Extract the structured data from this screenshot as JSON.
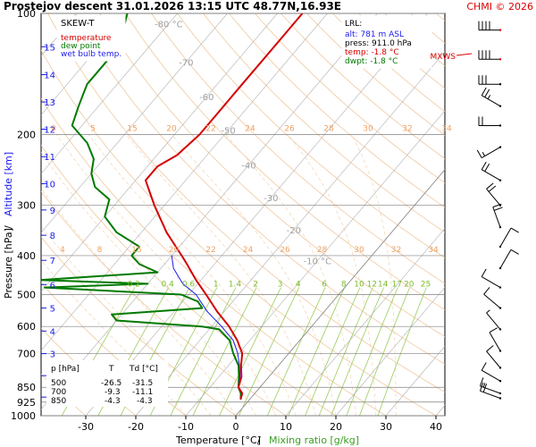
{
  "header": {
    "title": "Prostejov   descent   31.01.2026 13:15 UTC   48.77N,16.93E",
    "credit": "CHMI © 2026"
  },
  "colors": {
    "temperature": "#d40000",
    "dewpoint": "#007a00",
    "wetbulb": "#1a1aee",
    "isotherm": "#b0b0b0",
    "dry_adiabat": "#f0c8a0",
    "moist_adiabat": "#f3d4b4",
    "mixing_ratio": "#9ccc5a",
    "credit": "#dd0000"
  },
  "chart_data": {
    "type": "line",
    "diagram": "SKEW-T",
    "legend": [
      {
        "label": "temperature",
        "color": "#d40000"
      },
      {
        "label": "dew point",
        "color": "#007a00"
      },
      {
        "label": "wet bulb temp.",
        "color": "#1a1aee"
      }
    ],
    "xlabel": "Temperature [°C]",
    "xlabel_sep": "/",
    "xlabel2": "Mixing ratio [g/kg]",
    "ylabel": "Pressure [hPa]",
    "ylabel_sep": "/",
    "ylabel2": "Altitude [km]",
    "x_ticks": [
      -30,
      -20,
      -10,
      0,
      10,
      20,
      30,
      40
    ],
    "p_ticks": [
      100,
      200,
      300,
      400,
      500,
      600,
      700,
      850,
      925,
      1000
    ],
    "altitude_ticks": [
      {
        "km": 1,
        "p": 899
      },
      {
        "km": 2,
        "p": 795
      },
      {
        "km": 3,
        "p": 701
      },
      {
        "km": 4,
        "p": 616
      },
      {
        "km": 5,
        "p": 540
      },
      {
        "km": 6,
        "p": 472
      },
      {
        "km": 7,
        "p": 411
      },
      {
        "km": 8,
        "p": 356
      },
      {
        "km": 9,
        "p": 308
      },
      {
        "km": 10,
        "p": 265
      },
      {
        "km": 11,
        "p": 227
      },
      {
        "km": 12,
        "p": 194
      },
      {
        "km": 13,
        "p": 166
      },
      {
        "km": 14,
        "p": 142
      },
      {
        "km": 15,
        "p": 121
      }
    ],
    "isotherm_labels": [
      {
        "text": "-80 °C",
        "T": -80,
        "p": 106
      },
      {
        "text": "-70",
        "T": -70,
        "p": 132
      },
      {
        "text": "-60",
        "T": -60,
        "p": 161
      },
      {
        "text": "-50",
        "T": -50,
        "p": 195
      },
      {
        "text": "-40",
        "T": -40,
        "p": 238
      },
      {
        "text": "-30",
        "T": -30,
        "p": 287
      },
      {
        "text": "-20",
        "T": -20,
        "p": 345
      },
      {
        "text": "-10 °C",
        "T": -10,
        "p": 412
      }
    ],
    "mixing_ratio_values": [
      0.2,
      0.4,
      0.6,
      1,
      1.4,
      2,
      3,
      4,
      6,
      8,
      10,
      12,
      14,
      17,
      20,
      25
    ],
    "mixing_ratio_label_p": 485,
    "moist_adiabat_labels": [
      4,
      8,
      15,
      20,
      22,
      24,
      26,
      28,
      30,
      32,
      34
    ],
    "moist_adiabat_labels_upper": [
      0,
      5,
      15,
      20,
      22,
      24,
      26,
      28,
      30,
      32,
      34
    ],
    "lrl": {
      "title": "LRL:",
      "alt": "alt: 781 m ASL",
      "press": "press: 911.0 hPa",
      "temp": "temp: -1.8 °C",
      "dwpt": "dwpt: -1.8 °C"
    },
    "mxws_label": "MXWS",
    "table": {
      "headers": [
        "p [hPa]",
        "T",
        "Td [°C]"
      ],
      "rows": [
        [
          "500",
          "-26.5",
          "-31.5"
        ],
        [
          "700",
          "-9.3",
          "-11.1"
        ],
        [
          "850",
          "-4.3",
          "-4.3"
        ]
      ]
    },
    "temperature": [
      {
        "p": 911,
        "T": -1.8
      },
      {
        "p": 880,
        "T": -2.5
      },
      {
        "p": 850,
        "T": -4.3
      },
      {
        "p": 800,
        "T": -5.5
      },
      {
        "p": 750,
        "T": -7.5
      },
      {
        "p": 700,
        "T": -9.3
      },
      {
        "p": 650,
        "T": -12.5
      },
      {
        "p": 600,
        "T": -16.5
      },
      {
        "p": 550,
        "T": -21.5
      },
      {
        "p": 500,
        "T": -26.5
      },
      {
        "p": 460,
        "T": -31
      },
      {
        "p": 420,
        "T": -35.5
      },
      {
        "p": 400,
        "T": -38
      },
      {
        "p": 350,
        "T": -45
      },
      {
        "p": 300,
        "T": -52
      },
      {
        "p": 260,
        "T": -58
      },
      {
        "p": 240,
        "T": -58
      },
      {
        "p": 225,
        "T": -56
      },
      {
        "p": 200,
        "T": -55
      },
      {
        "p": 170,
        "T": -55
      },
      {
        "p": 150,
        "T": -55
      },
      {
        "p": 130,
        "T": -55
      },
      {
        "p": 110,
        "T": -55
      },
      {
        "p": 100,
        "T": -55
      }
    ],
    "dewpoint": [
      {
        "p": 911,
        "T": -1.8
      },
      {
        "p": 880,
        "T": -2.8
      },
      {
        "p": 850,
        "T": -4.3
      },
      {
        "p": 800,
        "T": -6
      },
      {
        "p": 750,
        "T": -8
      },
      {
        "p": 700,
        "T": -11.1
      },
      {
        "p": 650,
        "T": -14
      },
      {
        "p": 610,
        "T": -18
      },
      {
        "p": 600,
        "T": -22
      },
      {
        "p": 580,
        "T": -40
      },
      {
        "p": 560,
        "T": -42
      },
      {
        "p": 540,
        "T": -25
      },
      {
        "p": 520,
        "T": -27
      },
      {
        "p": 500,
        "T": -31.5
      },
      {
        "p": 480,
        "T": -60
      },
      {
        "p": 470,
        "T": -40
      },
      {
        "p": 460,
        "T": -62
      },
      {
        "p": 440,
        "T": -40
      },
      {
        "p": 420,
        "T": -45
      },
      {
        "p": 400,
        "T": -48
      },
      {
        "p": 380,
        "T": -48
      },
      {
        "p": 350,
        "T": -55
      },
      {
        "p": 320,
        "T": -60
      },
      {
        "p": 290,
        "T": -62
      },
      {
        "p": 270,
        "T": -67
      },
      {
        "p": 250,
        "T": -70
      },
      {
        "p": 230,
        "T": -72
      },
      {
        "p": 210,
        "T": -76
      },
      {
        "p": 190,
        "T": -82
      },
      {
        "p": 170,
        "T": -84
      },
      {
        "p": 150,
        "T": -86
      },
      {
        "p": 130,
        "T": -86
      },
      {
        "p": 110,
        "T": -88
      },
      {
        "p": 100,
        "T": -90
      }
    ],
    "wetbulb": [
      {
        "p": 911,
        "T": -1.8
      },
      {
        "p": 880,
        "T": -2.6
      },
      {
        "p": 850,
        "T": -4.3
      },
      {
        "p": 800,
        "T": -5.8
      },
      {
        "p": 750,
        "T": -7.8
      },
      {
        "p": 700,
        "T": -10.2
      },
      {
        "p": 650,
        "T": -13.3
      },
      {
        "p": 600,
        "T": -18
      },
      {
        "p": 550,
        "T": -23.5
      },
      {
        "p": 500,
        "T": -28.5
      },
      {
        "p": 470,
        "T": -33
      },
      {
        "p": 430,
        "T": -37.5
      },
      {
        "p": 400,
        "T": -40
      }
    ],
    "winds": [
      {
        "p": 110,
        "dir": 270,
        "spd": 40
      },
      {
        "p": 130,
        "dir": 270,
        "spd": 40
      },
      {
        "p": 150,
        "dir": 270,
        "spd": 30
      },
      {
        "p": 170,
        "dir": 300,
        "spd": 25
      },
      {
        "p": 190,
        "dir": 270,
        "spd": 20
      },
      {
        "p": 215,
        "dir": 240,
        "spd": 15
      },
      {
        "p": 260,
        "dir": 300,
        "spd": 20
      },
      {
        "p": 300,
        "dir": 320,
        "spd": 20
      },
      {
        "p": 340,
        "dir": 340,
        "spd": 20
      },
      {
        "p": 380,
        "dir": 30,
        "spd": 10
      },
      {
        "p": 430,
        "dir": 30,
        "spd": 10
      },
      {
        "p": 480,
        "dir": 300,
        "spd": 10
      },
      {
        "p": 540,
        "dir": 310,
        "spd": 10
      },
      {
        "p": 610,
        "dir": 320,
        "spd": 5
      },
      {
        "p": 690,
        "dir": 330,
        "spd": 10
      },
      {
        "p": 760,
        "dir": 320,
        "spd": 10
      },
      {
        "p": 820,
        "dir": 300,
        "spd": 10
      },
      {
        "p": 880,
        "dir": 290,
        "spd": 15
      },
      {
        "p": 905,
        "dir": 290,
        "spd": 20
      }
    ]
  }
}
